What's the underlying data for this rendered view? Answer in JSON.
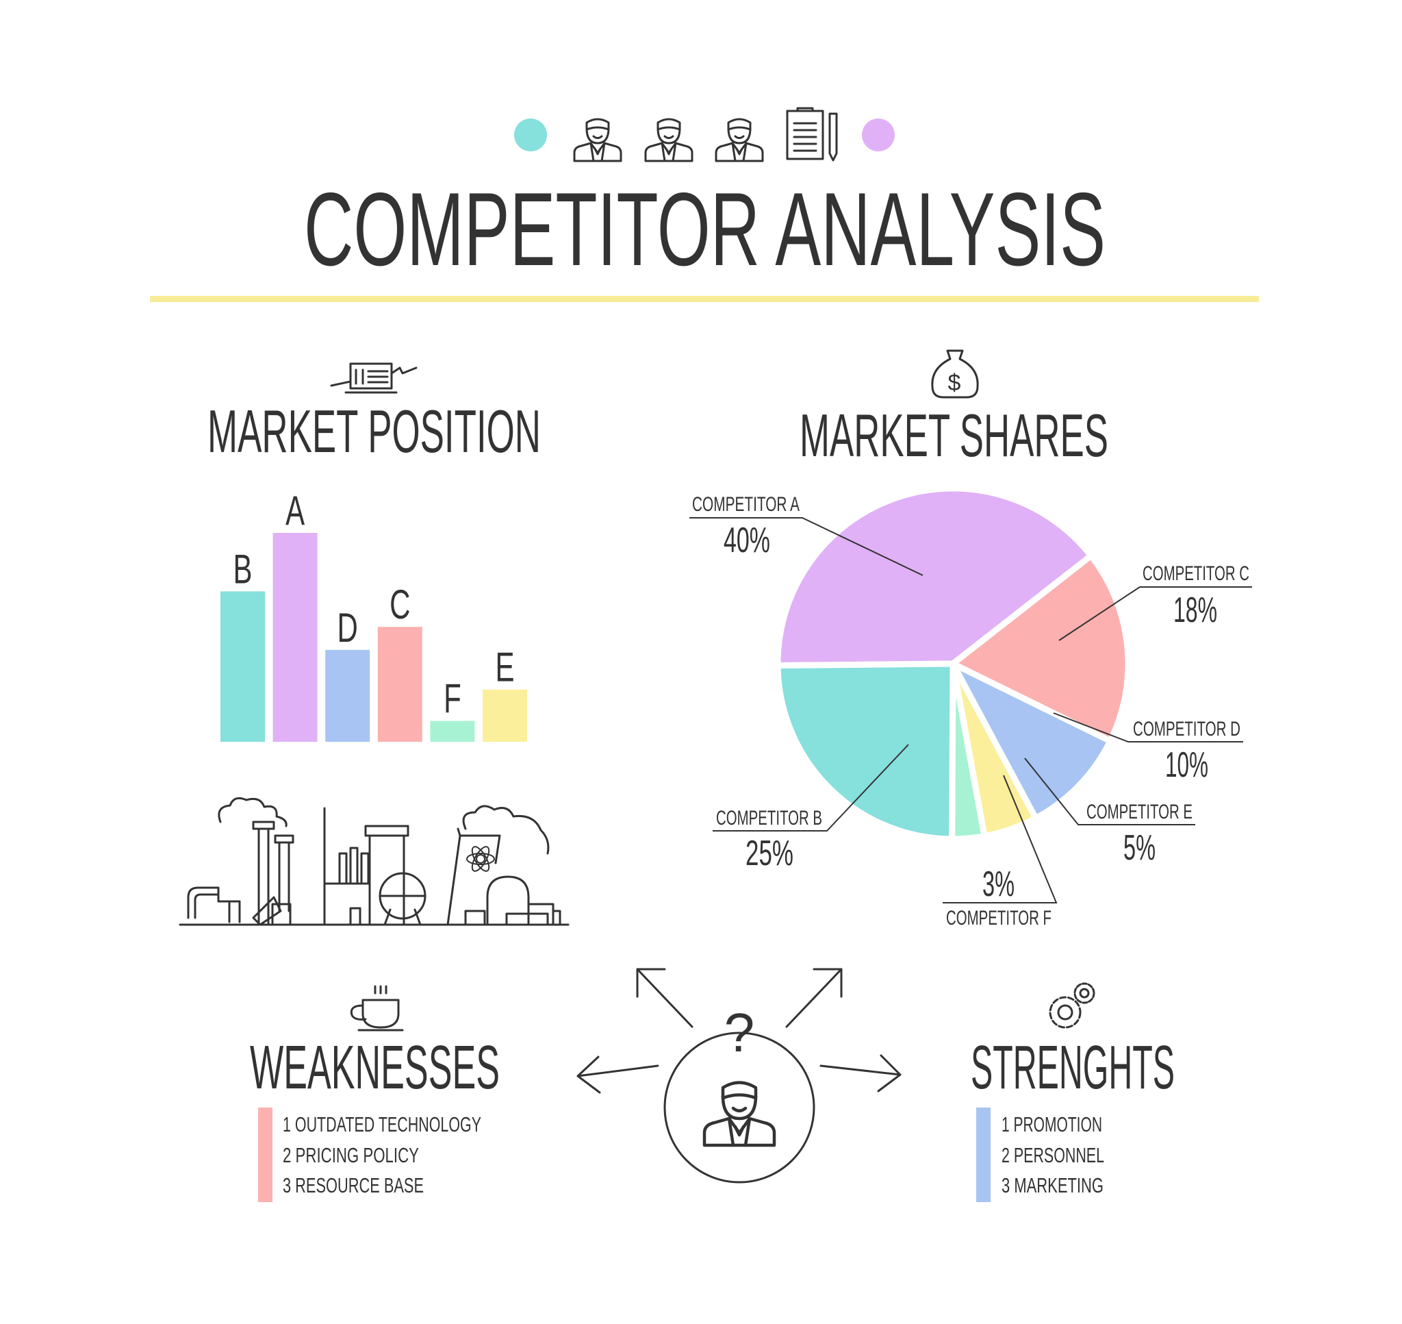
{
  "header": {
    "title": "COMPETITOR ANALYSIS",
    "icons": [
      "person-icon",
      "person-icon",
      "person-icon",
      "clipboard-pencil-icon"
    ],
    "dot_colors": [
      "#86e0dc",
      "#e0b1f7"
    ],
    "rule_color": "#f8ec98"
  },
  "market_position": {
    "title": "MARKET POSITION",
    "icon": "laptop-presentation-icon",
    "illustration": "industrial-skyline-illustration"
  },
  "market_shares": {
    "title": "MARKET SHARES",
    "icon": "money-bag-icon"
  },
  "chart_data": [
    {
      "type": "bar",
      "title": "MARKET POSITION",
      "categories": [
        "B",
        "A",
        "D",
        "C",
        "F",
        "E"
      ],
      "values": [
        72,
        100,
        44,
        55,
        10,
        25
      ],
      "colors": [
        "#86e0dc",
        "#e0b1f7",
        "#a7c4f2",
        "#fdb0b0",
        "#a8f2d4",
        "#fbef9c"
      ],
      "axes_visible": false,
      "grid": false
    },
    {
      "type": "pie",
      "title": "MARKET SHARES",
      "slices": [
        {
          "label": "COMPETITOR A",
          "value": 40,
          "display": "40%",
          "color": "#e0b1f7"
        },
        {
          "label": "COMPETITOR C",
          "value": 18,
          "display": "18%",
          "color": "#fdb0b0"
        },
        {
          "label": "COMPETITOR D",
          "value": 10,
          "display": "10%",
          "color": "#a7c4f2"
        },
        {
          "label": "COMPETITOR E",
          "value": 5,
          "display": "5%",
          "color": "#fbef9c"
        },
        {
          "label": "COMPETITOR F",
          "value": 3,
          "display": "3%",
          "color": "#a8f2d4"
        },
        {
          "label": "COMPETITOR B",
          "value": 25,
          "display": "25%",
          "color": "#86e0dc"
        }
      ]
    }
  ],
  "weaknesses": {
    "title": "WEAKNESSES",
    "icon": "coffee-cup-icon",
    "color": "#fdb0b0",
    "items": [
      "1 OUTDATED TECHNOLOGY",
      "2 PRICING POLICY",
      "3 RESOURCE BASE"
    ]
  },
  "strengths": {
    "title": "STRENGHTS",
    "icon": "gears-icon",
    "color": "#a7c4f2",
    "items": [
      "1 PROMOTION",
      "2 PERSONNEL",
      "3 MARKETING"
    ]
  },
  "center": {
    "question": "?",
    "icon": "person-icon"
  }
}
